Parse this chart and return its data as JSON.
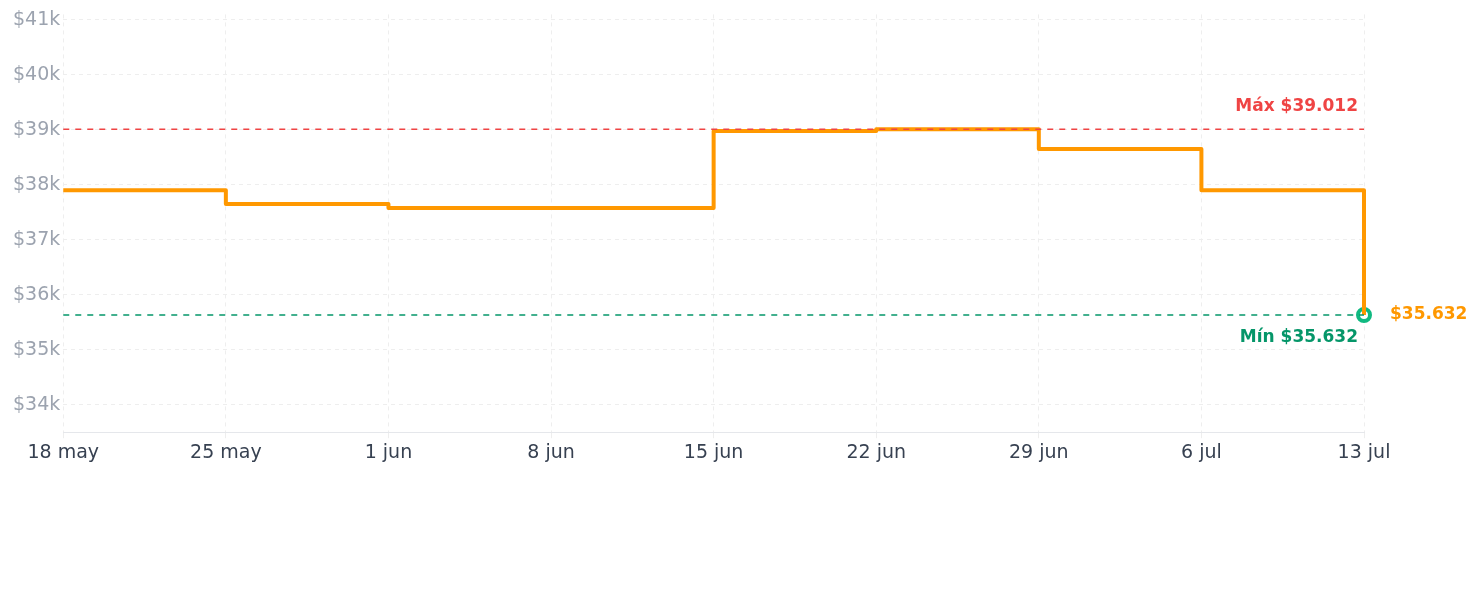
{
  "chart_data": {
    "type": "step",
    "x": [
      "--05-18",
      "--05-25",
      "--06-01",
      "--06-15",
      "--06-22",
      "--06-29",
      "--07-06",
      "--07-13"
    ],
    "series": [
      {
        "color": "#ff9800",
        "values": [
          37.9,
          37.65,
          37.58,
          38.98,
          39.012,
          38.65,
          37.9,
          35.632
        ],
        "marker": "none"
      },
      {
        "type": "scatter",
        "color": "#10b981",
        "x": [
          "--07-13"
        ],
        "values": [
          35.632
        ],
        "marker": "circle"
      }
    ],
    "xlim": [
      "--05-18",
      "--07-13"
    ],
    "xticks": [
      {
        "value": "--05-18",
        "label": "18 may"
      },
      {
        "value": "--05-25",
        "label": "25 may"
      },
      {
        "value": "--06-01",
        "label": "1 jun"
      },
      {
        "value": "--06-08",
        "label": "8 jun"
      },
      {
        "value": "--06-15",
        "label": "15 jun"
      },
      {
        "value": "--06-22",
        "label": "22 jun"
      },
      {
        "value": "--06-29",
        "label": "29 jun"
      },
      {
        "value": "--07-06",
        "label": "6 jul"
      },
      {
        "value": "--07-13",
        "label": "13 jul"
      }
    ],
    "ylim": [
      33.5,
      41.1
    ],
    "yticks": [
      {
        "value": 34,
        "label": "$34k"
      },
      {
        "value": 35,
        "label": "$35k"
      },
      {
        "value": 36,
        "label": "$36k"
      },
      {
        "value": 37,
        "label": "$37k"
      },
      {
        "value": 38,
        "label": "$38k"
      },
      {
        "value": 39,
        "label": "$39k"
      },
      {
        "value": 40,
        "label": "$40k"
      },
      {
        "value": 41,
        "label": "$41k"
      }
    ],
    "grid": true,
    "line_style": "solid",
    "ref_lines": [
      {
        "axis": "y",
        "value": 39.012,
        "label": "Máx $39.012",
        "color": "#ef4444",
        "line_style": "dashed"
      },
      {
        "axis": "y",
        "value": 35.632,
        "label": "Mín $35.632",
        "color": "#059669",
        "line_style": "dashed"
      }
    ],
    "annotations": [
      {
        "text": "$35.632",
        "x": "--07-13",
        "y": 35.632
      }
    ]
  }
}
